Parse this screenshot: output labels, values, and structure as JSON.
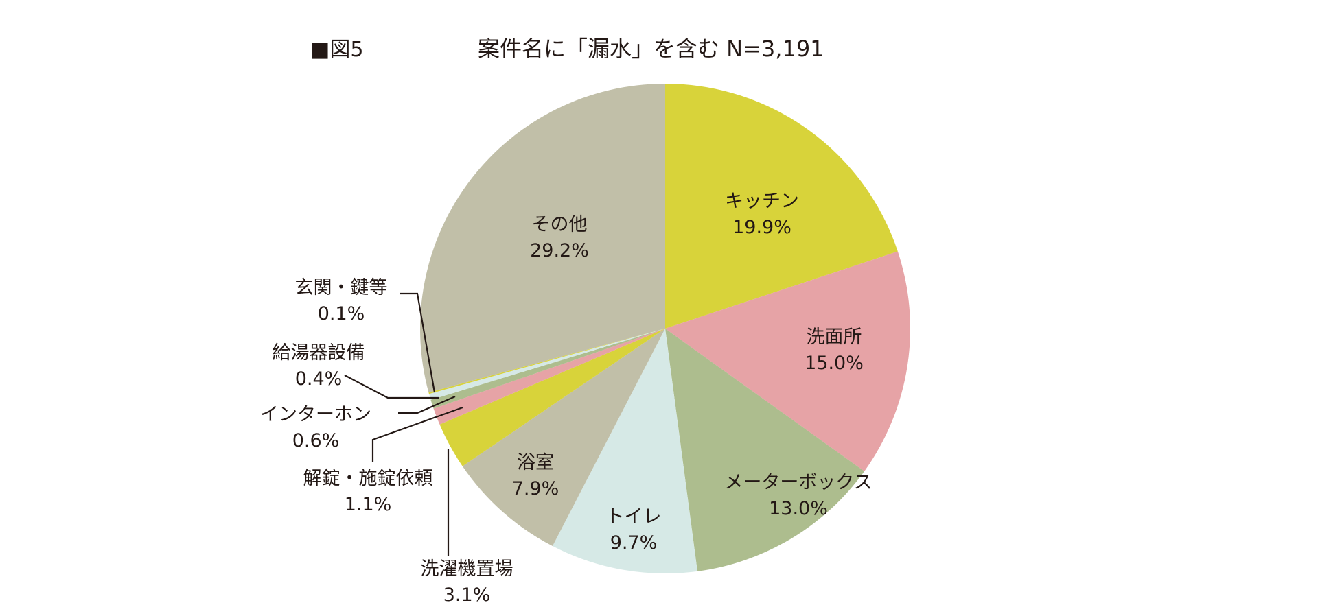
{
  "figure_label": "■図5",
  "chart_data": {
    "type": "pie",
    "title": "案件名に「漏水」を含む N=3,191",
    "start": "12 o'clock",
    "direction": "clockwise",
    "slices": [
      {
        "name": "キッチン",
        "value": 19.9,
        "label": "19.9%",
        "color": "#d8d33a"
      },
      {
        "name": "洗面所",
        "value": 15.0,
        "label": "15.0%",
        "color": "#e6a3a6"
      },
      {
        "name": "メーターボックス",
        "value": 13.0,
        "label": "13.0%",
        "color": "#adbd8e"
      },
      {
        "name": "トイレ",
        "value": 9.7,
        "label": "9.7%",
        "color": "#d6e9e6"
      },
      {
        "name": "浴室",
        "value": 7.9,
        "label": "7.9%",
        "color": "#c1bfa8"
      },
      {
        "name": "洗濯機置場",
        "value": 3.1,
        "label": "3.1%",
        "color": "#d8d33a"
      },
      {
        "name": "解錠・施錠依頼",
        "value": 1.1,
        "label": "1.1%",
        "color": "#e6a3a6"
      },
      {
        "name": "インターホン",
        "value": 0.6,
        "label": "0.6%",
        "color": "#adbd8e"
      },
      {
        "name": "給湯器設備",
        "value": 0.4,
        "label": "0.4%",
        "color": "#d6e9e6"
      },
      {
        "name": "玄関・鍵等",
        "value": 0.1,
        "label": "0.1%",
        "color": "#d8d33a"
      },
      {
        "name": "その他",
        "value": 29.2,
        "label": "29.2%",
        "color": "#c1bfa8"
      }
    ]
  }
}
